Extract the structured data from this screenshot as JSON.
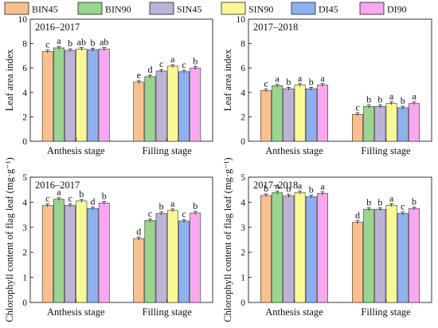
{
  "legend": {
    "placement": "top",
    "items": [
      {
        "name": "BIN45",
        "color": "#f9c08e"
      },
      {
        "name": "BIN90",
        "color": "#9ad48e"
      },
      {
        "name": "SIN45",
        "color": "#bcb3d6"
      },
      {
        "name": "SIN90",
        "color": "#f9f896"
      },
      {
        "name": "DI45",
        "color": "#8fb0ee"
      },
      {
        "name": "DI90",
        "color": "#f8a8ef"
      }
    ]
  },
  "chart_data": [
    {
      "type": "bar",
      "title": "2016–2017",
      "xlabel": "",
      "ylabel": "Leaf area index",
      "ylim": [
        0,
        10
      ],
      "yticks": [
        0,
        2,
        4,
        6,
        8,
        10
      ],
      "categories": [
        "Anthesis stage",
        "Filling stage"
      ],
      "series": [
        {
          "name": "BIN45",
          "values": [
            7.35,
            4.85
          ],
          "labels": [
            "c",
            "e"
          ]
        },
        {
          "name": "BIN90",
          "values": [
            7.65,
            5.3
          ],
          "labels": [
            "a",
            "d"
          ]
        },
        {
          "name": "SIN45",
          "values": [
            7.45,
            5.75
          ],
          "labels": [
            "b",
            "c"
          ]
        },
        {
          "name": "SIN90",
          "values": [
            7.55,
            6.15
          ],
          "labels": [
            "ab",
            "a"
          ]
        },
        {
          "name": "DI45",
          "values": [
            7.5,
            5.7
          ],
          "labels": [
            "b",
            "c"
          ]
        },
        {
          "name": "DI90",
          "values": [
            7.55,
            6.0
          ],
          "labels": [
            "ab",
            "b"
          ]
        }
      ]
    },
    {
      "type": "bar",
      "title": "2017–2018",
      "xlabel": "",
      "ylabel": "Leaf area index",
      "ylim": [
        0,
        10
      ],
      "yticks": [
        0,
        2,
        4,
        6,
        8,
        10
      ],
      "categories": [
        "Anthesis stage",
        "Filling stage"
      ],
      "series": [
        {
          "name": "BIN45",
          "values": [
            4.15,
            2.2
          ],
          "labels": [
            "c",
            "c"
          ]
        },
        {
          "name": "BIN90",
          "values": [
            4.55,
            2.85
          ],
          "labels": [
            "a",
            "b"
          ]
        },
        {
          "name": "SIN45",
          "values": [
            4.3,
            2.85
          ],
          "labels": [
            "b",
            "b"
          ]
        },
        {
          "name": "SIN90",
          "values": [
            4.6,
            3.1
          ],
          "labels": [
            "a",
            "a"
          ]
        },
        {
          "name": "DI45",
          "values": [
            4.3,
            2.75
          ],
          "labels": [
            "b",
            "b"
          ]
        },
        {
          "name": "DI90",
          "values": [
            4.6,
            3.1
          ],
          "labels": [
            "a",
            "a"
          ]
        }
      ]
    },
    {
      "type": "bar",
      "title": "2016–2017",
      "xlabel": "",
      "ylabel": "Chlorophyll content of flag leaf (mg·g⁻¹)",
      "ylim": [
        0,
        5
      ],
      "yticks": [
        0,
        1,
        2,
        3,
        4,
        5
      ],
      "categories": [
        "Anthesis stage",
        "Filling stage"
      ],
      "series": [
        {
          "name": "BIN45",
          "values": [
            3.87,
            2.55
          ],
          "labels": [
            "c",
            "d"
          ]
        },
        {
          "name": "BIN90",
          "values": [
            4.12,
            3.27
          ],
          "labels": [
            "a",
            "c"
          ]
        },
        {
          "name": "SIN45",
          "values": [
            3.87,
            3.55
          ],
          "labels": [
            "c",
            "b"
          ]
        },
        {
          "name": "SIN90",
          "values": [
            4.05,
            3.67
          ],
          "labels": [
            "b",
            "a"
          ]
        },
        {
          "name": "DI45",
          "values": [
            3.75,
            3.25
          ],
          "labels": [
            "d",
            "c"
          ]
        },
        {
          "name": "DI90",
          "values": [
            3.97,
            3.57
          ],
          "labels": [
            "b",
            "b"
          ]
        }
      ]
    },
    {
      "type": "bar",
      "title": "2017–2018",
      "xlabel": "",
      "ylabel": "Chlorophyll content of flag leaf (mg·g⁻¹)",
      "ylim": [
        0,
        5
      ],
      "yticks": [
        0,
        1,
        2,
        3,
        4,
        5
      ],
      "categories": [
        "Anthesis stage",
        "Filling stage"
      ],
      "series": [
        {
          "name": "BIN45",
          "values": [
            4.27,
            3.2
          ],
          "labels": [
            "b",
            "d"
          ]
        },
        {
          "name": "BIN90",
          "values": [
            4.38,
            3.72
          ],
          "labels": [
            "a",
            "b"
          ]
        },
        {
          "name": "SIN45",
          "values": [
            4.25,
            3.72
          ],
          "labels": [
            "b",
            "b"
          ]
        },
        {
          "name": "SIN90",
          "values": [
            4.38,
            3.88
          ],
          "labels": [
            "a",
            "a"
          ]
        },
        {
          "name": "DI45",
          "values": [
            4.22,
            3.55
          ],
          "labels": [
            "b",
            "c"
          ]
        },
        {
          "name": "DI90",
          "values": [
            4.35,
            3.75
          ],
          "labels": [
            "a",
            "b"
          ]
        }
      ]
    }
  ]
}
